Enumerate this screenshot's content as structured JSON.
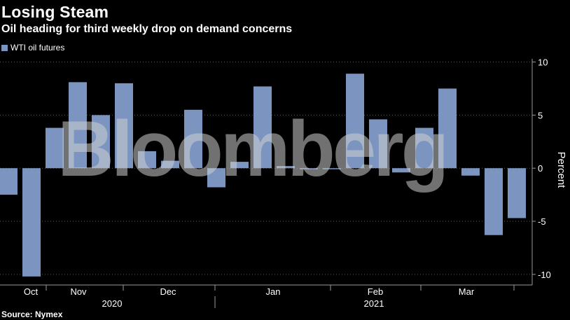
{
  "header": {
    "title": "Losing Steam",
    "subtitle": "Oil heading for third weekly drop on demand concerns"
  },
  "legend": {
    "label": "WTI oil futures"
  },
  "source": "Source: Nymex",
  "watermark": "Bloomberg",
  "colors": {
    "bar": "#7b95c0",
    "background": "#000000",
    "text": "#ffffff",
    "axis": "#9a9a9a"
  },
  "chart_data": {
    "type": "bar",
    "series": [
      {
        "name": "WTI oil futures",
        "values": [
          -2.5,
          -10.2,
          3.8,
          8.1,
          5.0,
          8.0,
          1.6,
          0.7,
          5.5,
          -1.8,
          0.6,
          7.7,
          0.2,
          -0.1,
          -0.1,
          8.9,
          4.6,
          -0.4,
          3.8,
          7.5,
          -0.7,
          -6.3,
          -4.7
        ]
      }
    ],
    "ylabel": "Percent",
    "ylim": [
      -11,
      10.3
    ],
    "yticks": [
      10,
      5,
      0,
      -5,
      -10
    ],
    "month_labels": [
      "Oct",
      "Nov",
      "Dec",
      "Jan",
      "Feb",
      "Mar"
    ],
    "year_labels": [
      "2020",
      "2021"
    ]
  }
}
